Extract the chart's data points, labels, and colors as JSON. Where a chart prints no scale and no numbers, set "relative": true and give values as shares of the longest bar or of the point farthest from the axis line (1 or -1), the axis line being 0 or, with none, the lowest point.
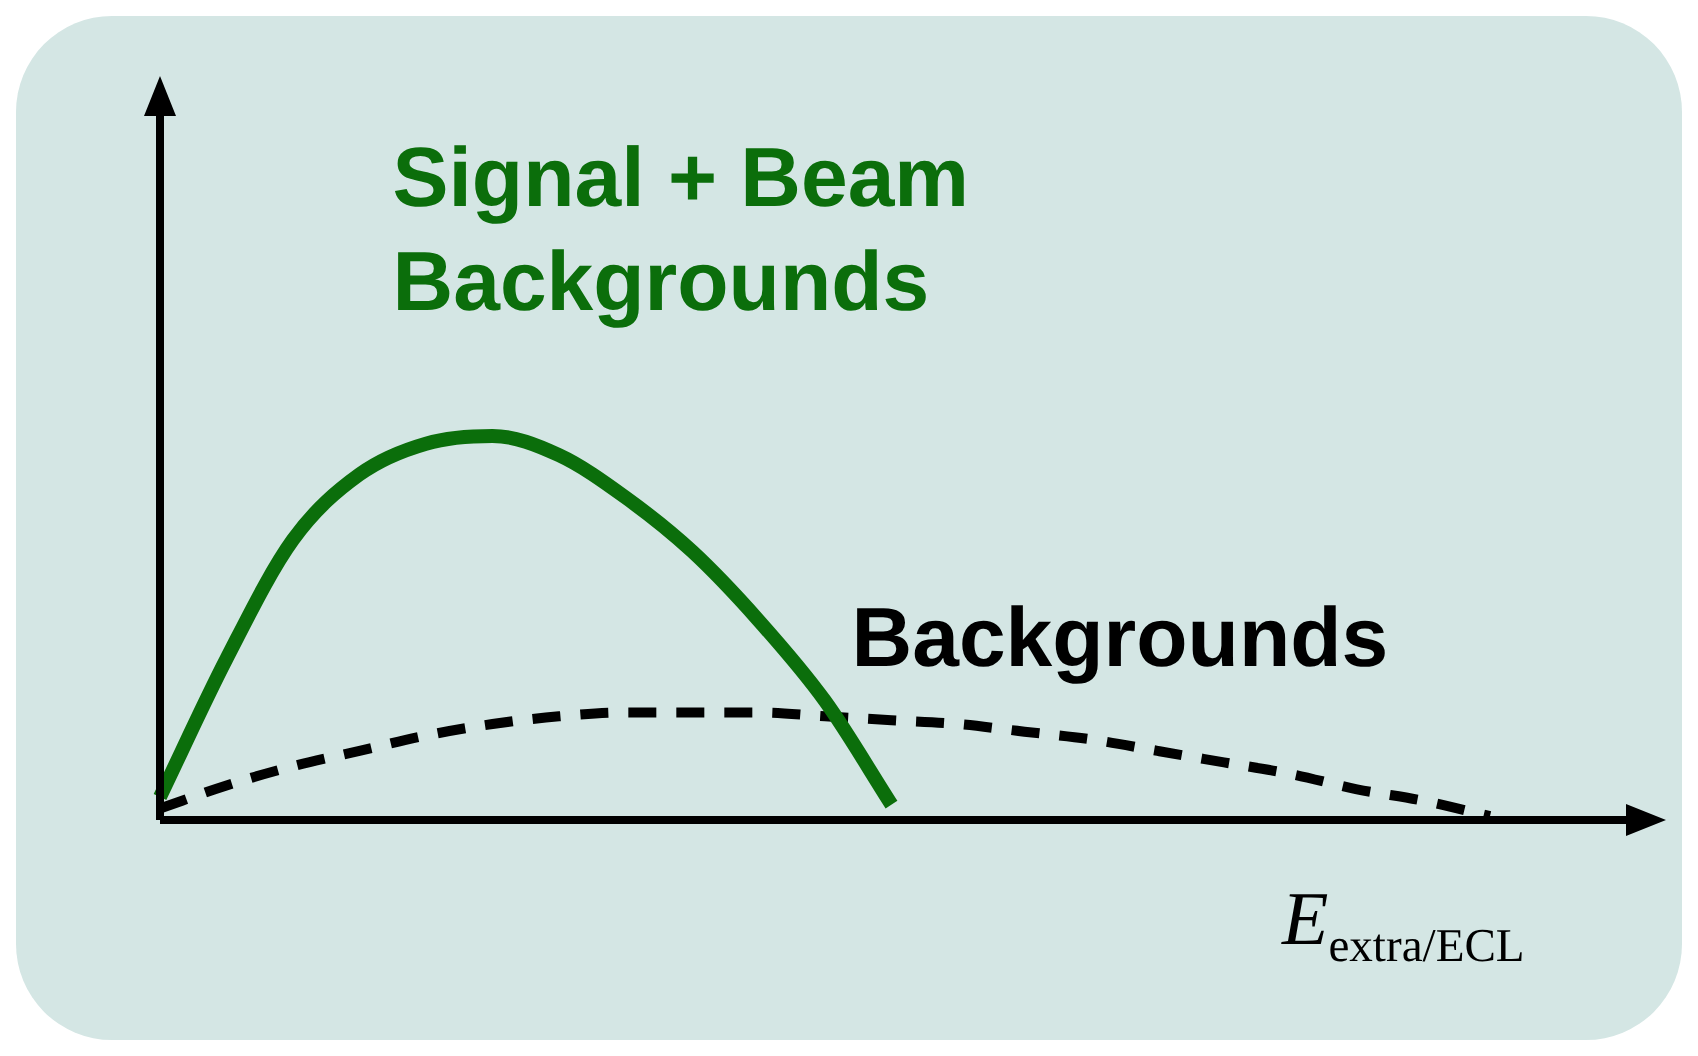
{
  "chart_data": {
    "type": "line",
    "xlabel": "E$_{extra/ECL}$",
    "categories": [
      null,
      null,
      null,
      null,
      null,
      null,
      null,
      null,
      null,
      null,
      null,
      null,
      null,
      null,
      null,
      null,
      null,
      null,
      null,
      null,
      null
    ],
    "relative": true,
    "legend": false,
    "marker": "none",
    "series": [
      {
        "name": "Signal + Beam Backgrounds",
        "color": "#0b6e0b",
        "line_style": "solid",
        "values": [
          0.06,
          0.42,
          0.73,
          0.9,
          0.98,
          1,
          0.95,
          0.84,
          0.7,
          0.52,
          0.31,
          0.04,
          null,
          null,
          null,
          null,
          null,
          null,
          null,
          null,
          null
        ]
      },
      {
        "name": "Backgrounds",
        "color": "#000000",
        "line_style": "dashed",
        "values": [
          0.03,
          0.09,
          0.14,
          0.18,
          0.22,
          0.25,
          0.27,
          0.28,
          0.28,
          0.28,
          0.27,
          0.26,
          0.25,
          0.23,
          0.21,
          0.18,
          0.15,
          0.12,
          0.08,
          0.05,
          0.01
        ]
      }
    ]
  }
}
